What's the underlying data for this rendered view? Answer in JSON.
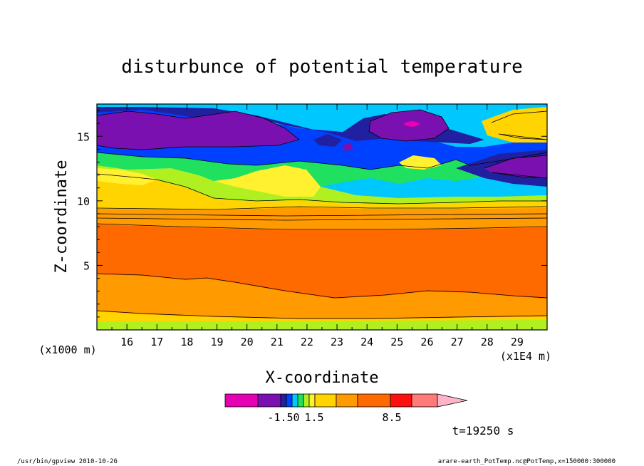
{
  "chart_data": {
    "type": "heatmap",
    "title": "disturbunce of potential temperature",
    "xlabel": "X-coordinate",
    "ylabel": "Z-coordinate",
    "x_unit": "(x1E4 m)",
    "y_unit": "(x1000 m)",
    "xlim": [
      15.0,
      30.0
    ],
    "ylim": [
      0.0,
      17.5
    ],
    "x_ticks": [
      16,
      17,
      18,
      19,
      20,
      21,
      22,
      23,
      24,
      25,
      26,
      27,
      28,
      29
    ],
    "y_ticks": [
      5,
      10,
      15
    ],
    "colorbar": {
      "colors": [
        "#e600b3",
        "#7a10b0",
        "#2020a0",
        "#0040ff",
        "#00c8ff",
        "#20e060",
        "#b0f020",
        "#fff030",
        "#ffd400",
        "#ff9a00",
        "#ff6a00",
        "#ff1010",
        "#ff7a78",
        "#ffb4c8"
      ],
      "labels": [
        "-1.50",
        "1.5",
        "8.5"
      ]
    },
    "annotation_time": "t=19250 s",
    "footer_left": "/usr/bin/gpview   2010-10-26",
    "footer_right": "arare-earth_PotTemp.nc@PotTemp,x=150000:300000"
  },
  "colors": {
    "magenta": "#e600b3",
    "purple": "#7a10b0",
    "navy": "#2020a0",
    "blue": "#0040ff",
    "cyan": "#00c8ff",
    "green": "#20e060",
    "lime": "#b0f020",
    "yellow": "#fff030",
    "gold": "#ffd400",
    "orange": "#ff9a00",
    "darkorange": "#ff6a00",
    "red": "#ff1010",
    "salmon": "#ff7a78",
    "pink": "#ffb4c8"
  }
}
